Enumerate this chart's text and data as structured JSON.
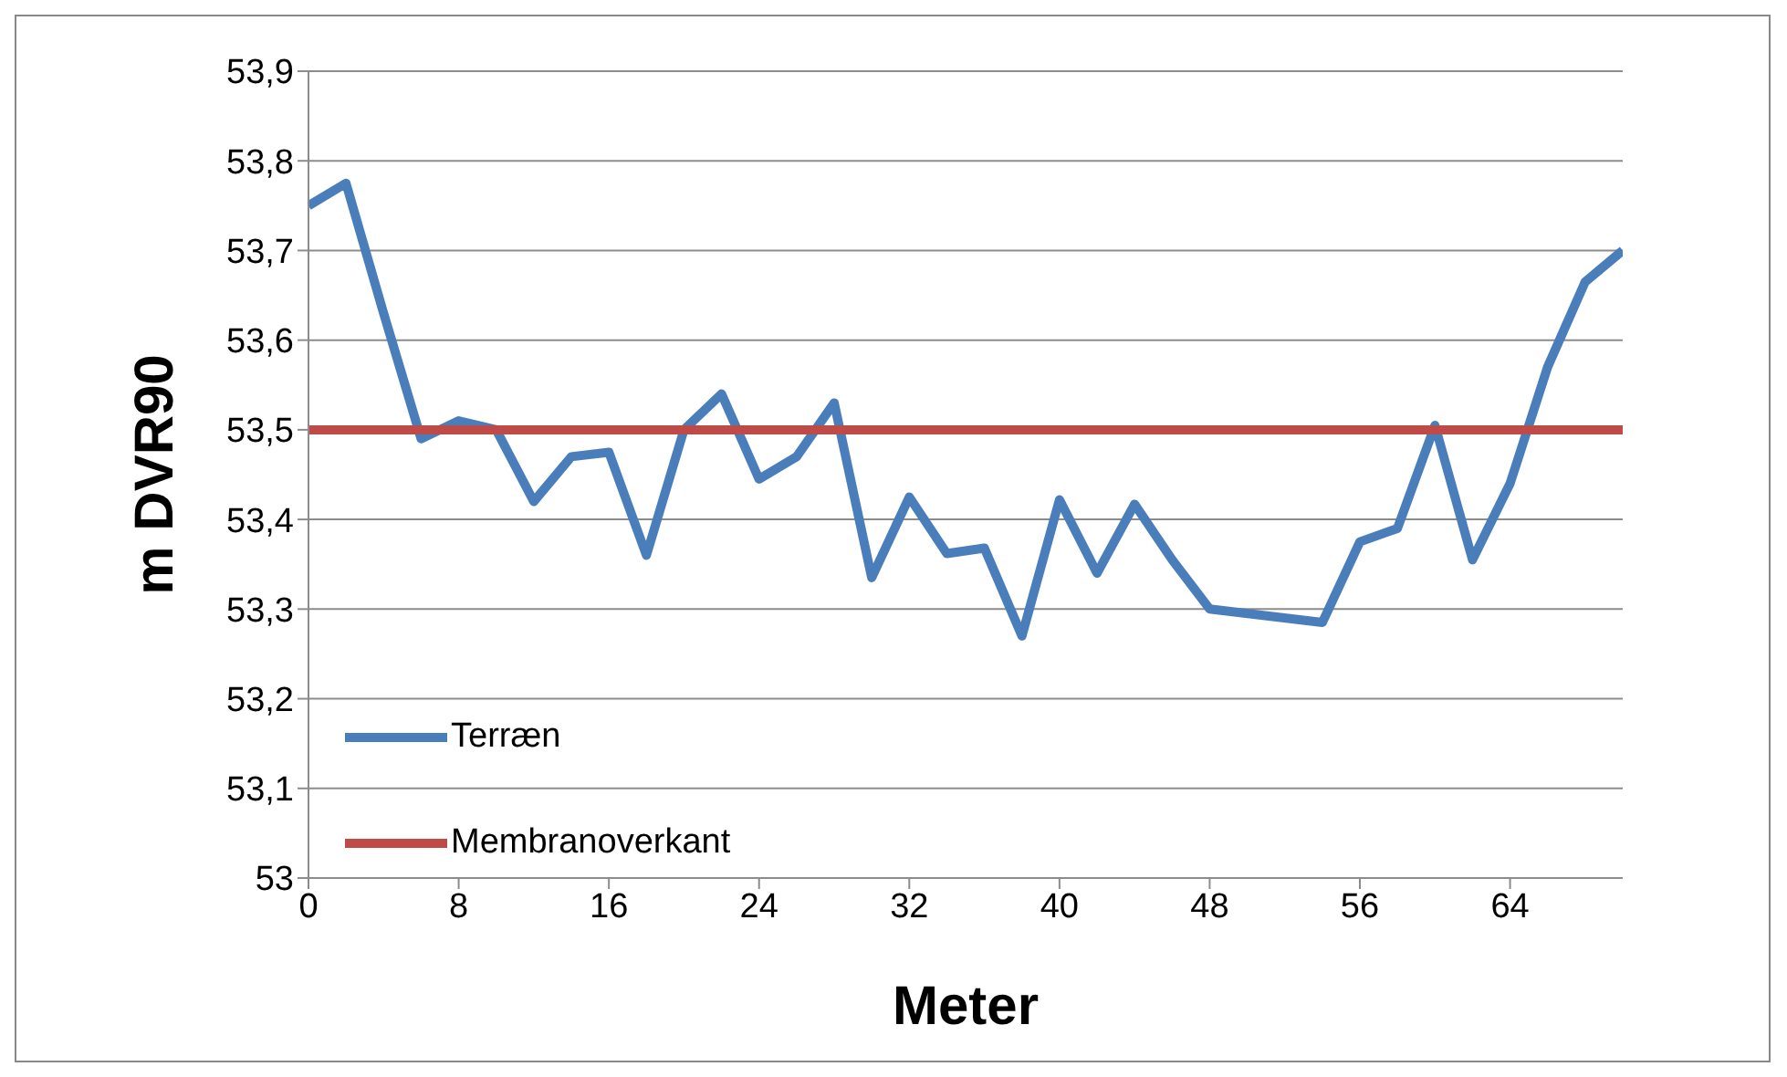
{
  "chart_data": {
    "type": "line",
    "xlabel": "Meter",
    "ylabel": "m DVR90",
    "xlim": [
      0,
      70
    ],
    "xticks": [
      0,
      8,
      16,
      24,
      32,
      40,
      48,
      56,
      64
    ],
    "ylim": [
      53,
      53.9
    ],
    "yticks": [
      {
        "value": 53,
        "label": "53"
      },
      {
        "value": 53.1,
        "label": "53,1"
      },
      {
        "value": 53.2,
        "label": "53,2"
      },
      {
        "value": 53.3,
        "label": "53,3"
      },
      {
        "value": 53.4,
        "label": "53,4"
      },
      {
        "value": 53.5,
        "label": "53,5"
      },
      {
        "value": 53.6,
        "label": "53,6"
      },
      {
        "value": 53.7,
        "label": "53,7"
      },
      {
        "value": 53.8,
        "label": "53,8"
      },
      {
        "value": 53.9,
        "label": "53,9"
      }
    ],
    "grid": "y",
    "legend": "bottom left",
    "marker": "none",
    "line_style": "solid",
    "series": [
      {
        "name": "Terræn",
        "color": "#4a7ebb",
        "x": [
          0,
          2,
          4,
          6,
          8,
          10,
          12,
          14,
          16,
          18,
          20,
          22,
          24,
          26,
          28,
          30,
          32,
          34,
          36,
          38,
          40,
          42,
          44,
          46,
          48,
          54,
          56,
          58,
          60,
          62,
          64,
          66,
          68,
          70
        ],
        "values": [
          53.75,
          53.775,
          53.63,
          53.49,
          53.51,
          53.5,
          53.42,
          53.47,
          53.475,
          53.36,
          53.5,
          53.54,
          53.445,
          53.47,
          53.53,
          53.335,
          53.425,
          53.362,
          53.368,
          53.27,
          53.422,
          53.34,
          53.417,
          53.355,
          53.3,
          53.285,
          53.375,
          53.39,
          53.505,
          53.355,
          53.44,
          53.57,
          53.665,
          53.7
        ]
      },
      {
        "name": "Membranoverkant",
        "color": "#be4b48",
        "x": [
          0,
          70
        ],
        "values": [
          53.5,
          53.5
        ]
      }
    ]
  }
}
